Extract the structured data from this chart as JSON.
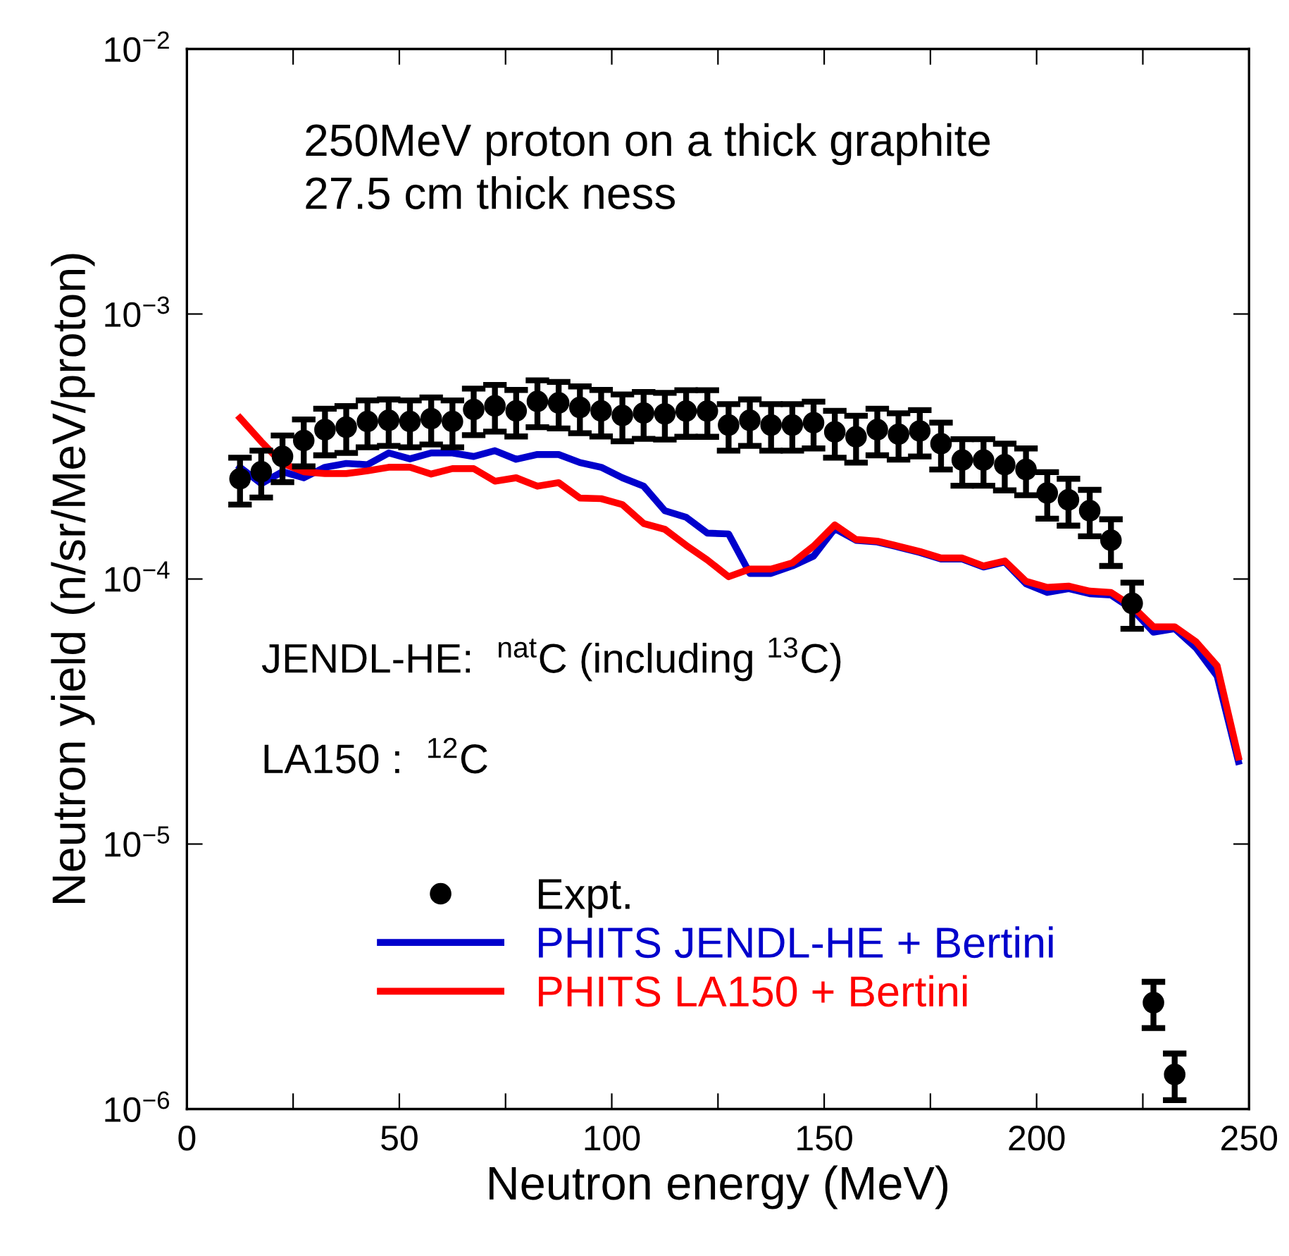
{
  "chart_data": {
    "type": "line",
    "xlabel": "Neutron energy (MeV)",
    "ylabel": "Neutron yield (n/sr/MeV/proton)",
    "log": "y",
    "xlim": [
      0,
      250
    ],
    "xticks": [
      0,
      {
        "value": 25,
        "label": null
      },
      50,
      {
        "value": 75,
        "label": null
      },
      100,
      {
        "value": 125,
        "label": null
      },
      150,
      {
        "value": 175,
        "label": null
      },
      200,
      {
        "value": 225,
        "label": null
      },
      250
    ],
    "ylim": [
      1e-06,
      0.01
    ],
    "yticks": [
      {
        "value": 1e-06,
        "label": "10$^{−6}$"
      },
      {
        "value": 1e-05,
        "label": "10$^{−5}$"
      },
      {
        "value": 0.0001,
        "label": "10$^{−4}$"
      },
      {
        "value": 0.001,
        "label": "10$^{−3}$"
      },
      {
        "value": 0.01,
        "label": "10$^{−2}$"
      }
    ],
    "grid": false,
    "legend": "bottom",
    "annotations": [
      "250MeV proton on a thick graphite",
      "27.5 cm thick ness",
      "JENDL-HE:  $^{nat}$C (including $^{13}$C)",
      "LA150 :  $^{12}$C"
    ],
    "series": [
      {
        "name": "Expt.",
        "type": "scatter",
        "marker": "circle",
        "color": "#000000",
        "x": [
          12.5,
          17.5,
          22.5,
          27.5,
          32.5,
          37.5,
          42.5,
          47.5,
          52.5,
          57.5,
          62.5,
          67.5,
          72.5,
          77.5,
          82.5,
          87.5,
          92.5,
          97.5,
          102.5,
          107.5,
          112.5,
          117.5,
          122.5,
          127.5,
          132.5,
          137.5,
          142.5,
          147.5,
          152.5,
          157.5,
          162.5,
          167.5,
          172.5,
          177.5,
          182.5,
          187.5,
          192.5,
          197.5,
          202.5,
          207.5,
          212.5,
          217.5,
          222.5,
          227.5,
          232.5
        ],
        "values": [
          0.000239,
          0.000254,
          0.00029,
          0.000333,
          0.000366,
          0.000374,
          0.000393,
          0.000397,
          0.000393,
          0.000403,
          0.000393,
          0.000436,
          0.00045,
          0.000431,
          0.000468,
          0.000462,
          0.000444,
          0.000431,
          0.000414,
          0.000423,
          0.00042,
          0.00043,
          0.00043,
          0.000381,
          0.000397,
          0.000381,
          0.000381,
          0.000389,
          0.000359,
          0.000344,
          0.000366,
          0.000352,
          0.000362,
          0.000324,
          0.000281,
          0.000281,
          0.00027,
          0.000259,
          0.000211,
          0.000199,
          0.000181,
          0.00014,
          8.09e-05,
          2.52e-06,
          1.35e-06
        ],
        "errors": [
          4.8e-05,
          5.1e-05,
          5.8e-05,
          6.7e-05,
          7.3e-05,
          7.5e-05,
          7.9e-05,
          7.9e-05,
          7.9e-05,
          8.1e-05,
          7.9e-05,
          8.7e-05,
          9e-05,
          8.6e-05,
          9.4e-05,
          9.2e-05,
          8.9e-05,
          8.6e-05,
          8.3e-05,
          8.5e-05,
          8.4e-05,
          8.6e-05,
          8.6e-05,
          7.6e-05,
          7.9e-05,
          7.6e-05,
          7.6e-05,
          7.8e-05,
          7.2e-05,
          6.9e-05,
          7.3e-05,
          7e-05,
          7.2e-05,
          6.5e-05,
          5.6e-05,
          5.6e-05,
          5.4e-05,
          5.2e-05,
          4.2e-05,
          4e-05,
          3.6e-05,
          2.8e-05,
          1.6e-05,
          5e-07,
          2.7e-07
        ]
      },
      {
        "name": "PHITS JENDL-HE + Bertini",
        "marker": "none",
        "color": "#0000cc",
        "x": [
          12.5,
          17.5,
          22.5,
          27.5,
          32.5,
          37.5,
          42.5,
          47.5,
          52.5,
          57.5,
          62.5,
          67.5,
          72.5,
          77.5,
          82.5,
          87.5,
          92.5,
          97.5,
          102.5,
          107.5,
          112.5,
          117.5,
          122.5,
          127.5,
          132.5,
          137.5,
          142.5,
          147.5,
          152.5,
          157.5,
          162.5,
          167.5,
          172.5,
          177.5,
          182.5,
          187.5,
          192.5,
          197.5,
          202.5,
          207.5,
          212.5,
          217.5,
          222.5,
          227.5,
          232.5,
          237.5,
          242.5,
          247.5
        ],
        "values": [
          0.000264,
          0.000229,
          0.000254,
          0.000241,
          0.000264,
          0.000273,
          0.00027,
          0.000299,
          0.000284,
          0.000299,
          0.000299,
          0.00029,
          0.000305,
          0.000283,
          0.000295,
          0.000295,
          0.000275,
          0.000264,
          0.000241,
          0.000224,
          0.000181,
          0.000171,
          0.000149,
          0.000148,
          0.000105,
          0.000105,
          0.000112,
          0.000122,
          0.000155,
          0.00014,
          0.000138,
          0.000132,
          0.000126,
          0.000119,
          0.000119,
          0.000111,
          0.000116,
          9.6e-05,
          8.9e-05,
          9.2e-05,
          8.8e-05,
          8.7e-05,
          7.7e-05,
          6.3e-05,
          6.5e-05,
          5.5e-05,
          4.3e-05,
          2.05e-05
        ]
      },
      {
        "name": "PHITS LA150 + Bertini",
        "marker": "none",
        "color": "#ff0000",
        "x": [
          12.5,
          17.5,
          22.5,
          27.5,
          32.5,
          37.5,
          42.5,
          47.5,
          52.5,
          57.5,
          62.5,
          67.5,
          72.5,
          77.5,
          82.5,
          87.5,
          92.5,
          97.5,
          102.5,
          107.5,
          112.5,
          117.5,
          122.5,
          127.5,
          132.5,
          137.5,
          142.5,
          147.5,
          152.5,
          157.5,
          162.5,
          167.5,
          172.5,
          177.5,
          182.5,
          187.5,
          192.5,
          197.5,
          202.5,
          207.5,
          212.5,
          217.5,
          222.5,
          227.5,
          232.5,
          237.5,
          242.5,
          247.5
        ],
        "values": [
          0.000405,
          0.00033,
          0.000273,
          0.000254,
          0.00025,
          0.00025,
          0.000256,
          0.000264,
          0.000264,
          0.000249,
          0.000261,
          0.000261,
          0.000234,
          0.000241,
          0.000224,
          0.000231,
          0.000202,
          0.000201,
          0.000191,
          0.000162,
          0.000154,
          0.000134,
          0.000118,
          0.000102,
          0.000109,
          0.000109,
          0.000115,
          0.000133,
          0.00016,
          0.000141,
          0.000139,
          0.000133,
          0.000127,
          0.00012,
          0.00012,
          0.000112,
          0.000117,
          9.8e-05,
          9.3e-05,
          9.4e-05,
          9e-05,
          8.9e-05,
          7.9e-05,
          6.6e-05,
          6.6e-05,
          5.8e-05,
          4.7e-05,
          2.13e-05
        ]
      }
    ]
  }
}
